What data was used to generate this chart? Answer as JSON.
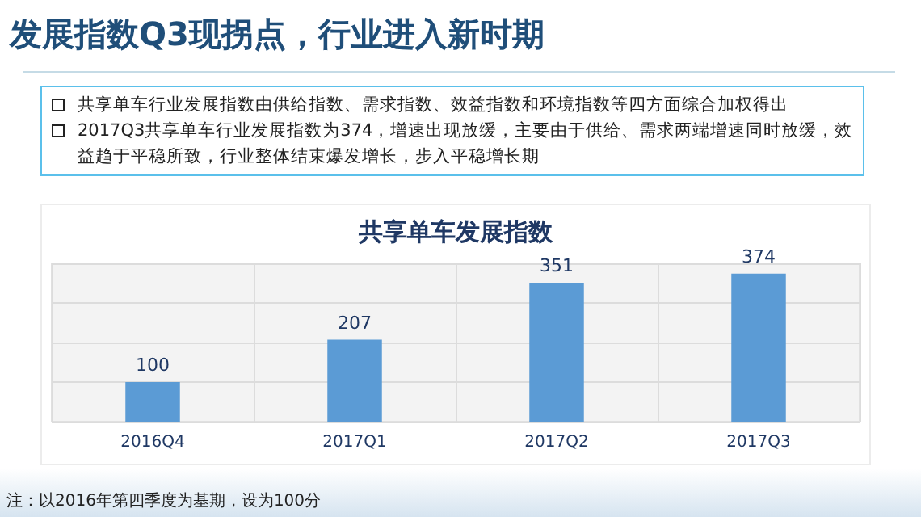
{
  "chart_data": {
    "type": "bar",
    "title": "共享单车发展指数",
    "annotations": [
      "发展指数Q3现拐点，行业进入新时期",
      "共享单车行业发展指数由供给指数、需求指数、效益指数和环境指数等四方面综合加权得出",
      "2017Q3共享单车行业发展指数为374，增速出现放缓，主要由于供给、需求两端增速同时放缓，效益趋于平稳所致，行业整体结束爆发增长，步入平稳增长期",
      "注：以2016年第四季度为基期，设为100分"
    ],
    "categories": [
      "2016Q4",
      "2017Q1",
      "2017Q2",
      "2017Q3"
    ],
    "values": [
      100,
      207,
      351,
      374
    ],
    "color": "#5b9bd5",
    "ylim": [
      0,
      400
    ],
    "yticks": [
      {
        "value": 0,
        "label": null
      },
      {
        "value": 100,
        "label": null
      },
      {
        "value": 200,
        "label": null
      },
      {
        "value": 300,
        "label": null
      },
      {
        "value": 400,
        "label": null
      }
    ],
    "tick_labels": "x",
    "grid": true,
    "data_labels": true
  }
}
